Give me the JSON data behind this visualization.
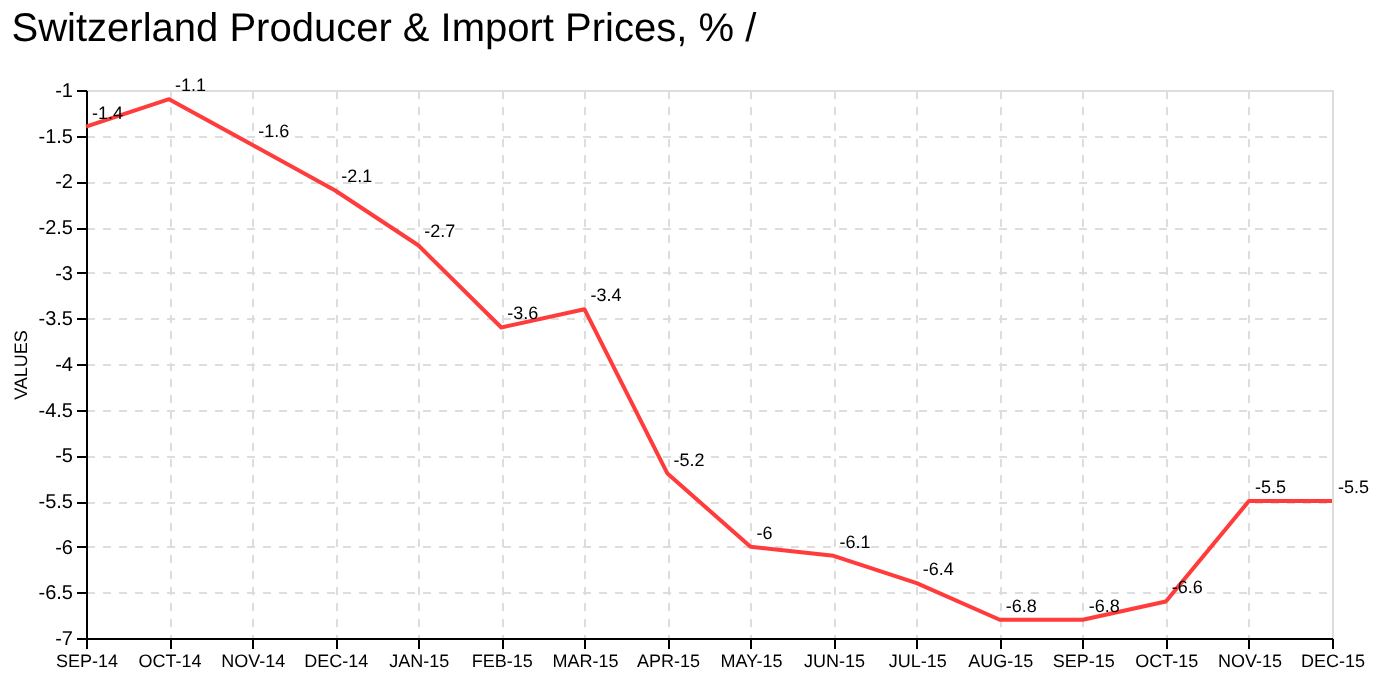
{
  "chart_data": {
    "type": "line",
    "title": "Switzerland Producer & Import Prices, % /",
    "ylabel": "VALUES",
    "categories": [
      "SEP-14",
      "OCT-14",
      "NOV-14",
      "DEC-14",
      "JAN-15",
      "FEB-15",
      "MAR-15",
      "APR-15",
      "MAY-15",
      "JUN-15",
      "JUL-15",
      "AUG-15",
      "SEP-15",
      "OCT-15",
      "NOV-15",
      "DEC-15"
    ],
    "series": [
      {
        "color": "#ff3b3b",
        "values": [
          -1.4,
          -1.1,
          -1.6,
          -2.1,
          -2.7,
          -3.6,
          -3.4,
          -5.2,
          -6,
          -6.1,
          -6.4,
          -6.8,
          -6.8,
          -6.6,
          -5.5,
          -5.5
        ]
      }
    ],
    "ylim": [
      -7,
      -1
    ],
    "yticks": [
      -7,
      -6.5,
      -6,
      -5.5,
      -5,
      -4.5,
      -4,
      -3.5,
      -3,
      -2.5,
      -2,
      -1.5,
      -1
    ],
    "grid": true,
    "data_labels": true,
    "marker": "none",
    "line_style": "solid"
  }
}
